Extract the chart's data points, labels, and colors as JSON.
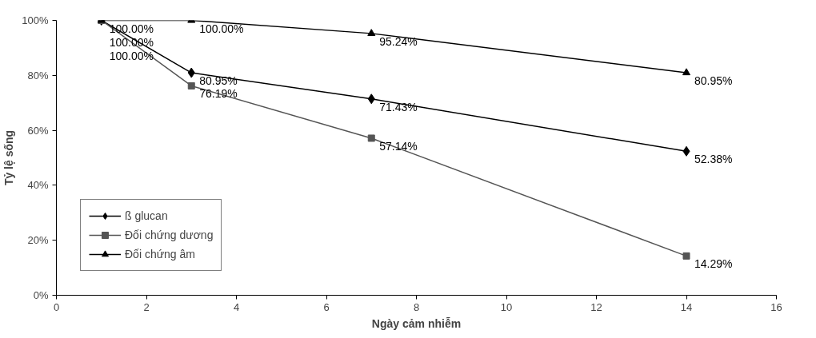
{
  "chart_data": {
    "type": "line",
    "xlabel": "Ngày cảm nhiễm",
    "ylabel": "Tỷ lệ sống",
    "x": [
      1,
      3,
      7,
      14
    ],
    "series": [
      {
        "name": "ß glucan",
        "color": "#000000",
        "marker": "diamond",
        "values": [
          100,
          80.95,
          71.43,
          52.38
        ],
        "value_labels": [
          "100.00%",
          "80.95%",
          "71.43%",
          "52.38%"
        ]
      },
      {
        "name": "Đối chứng dương",
        "color": "#555555",
        "marker": "square",
        "values": [
          100,
          76.19,
          57.14,
          14.29
        ],
        "value_labels": [
          "100.00%",
          "76.19%",
          "57.14%",
          "14.29%"
        ]
      },
      {
        "name": "Đối chứng âm",
        "color": "#000000",
        "marker": "triangle",
        "values": [
          100,
          100,
          95.24,
          80.95
        ],
        "value_labels": [
          "100.00%",
          "100.00%",
          "95.24%",
          "80.95%"
        ]
      }
    ],
    "xlim": [
      0,
      16
    ],
    "xticks": [
      0,
      2,
      4,
      6,
      8,
      10,
      12,
      14,
      16
    ],
    "ylim": [
      0,
      100
    ],
    "yticks": [
      {
        "value": 0,
        "label": "0%"
      },
      {
        "value": 20,
        "label": "20%"
      },
      {
        "value": 40,
        "label": "40%"
      },
      {
        "value": 60,
        "label": "60%"
      },
      {
        "value": 80,
        "label": "80%"
      },
      {
        "value": 100,
        "label": "100%"
      }
    ],
    "grid": false,
    "legend": "bottom left",
    "line_style": "solid"
  }
}
